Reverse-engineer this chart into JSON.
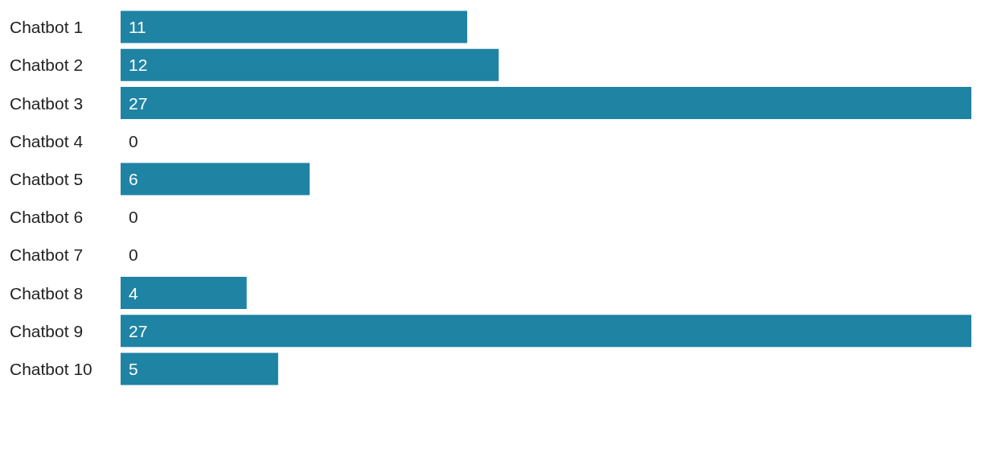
{
  "chart_data": {
    "type": "bar",
    "orientation": "horizontal",
    "categories": [
      "Chatbot 1",
      "Chatbot 2",
      "Chatbot 3",
      "Chatbot 4",
      "Chatbot 5",
      "Chatbot 6",
      "Chatbot 7",
      "Chatbot 8",
      "Chatbot 9",
      "Chatbot 10"
    ],
    "values": [
      11,
      12,
      27,
      0,
      6,
      0,
      0,
      4,
      27,
      5
    ],
    "color": "#1f83a3",
    "data_labels": true
  }
}
